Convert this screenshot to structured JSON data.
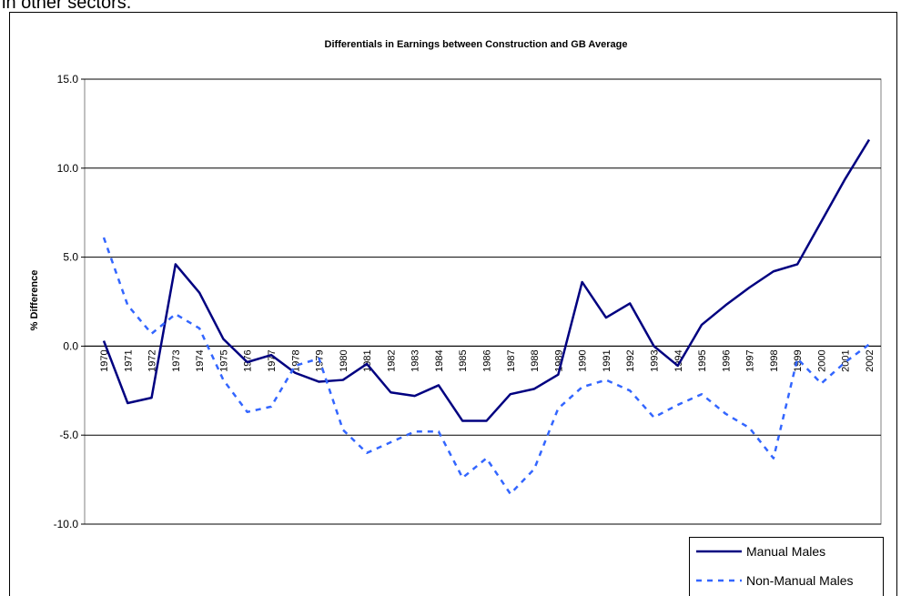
{
  "page_text": "in other sectors.",
  "chart_data": {
    "type": "line",
    "title": "Differentials in Earnings between Construction and GB Average",
    "ylabel": "% Difference",
    "categories": [
      "1970",
      "1971",
      "1972",
      "1973",
      "1974",
      "1975",
      "1976",
      "1977",
      "1978",
      "1979",
      "1980",
      "1981",
      "1982",
      "1983",
      "1984",
      "1985",
      "1986",
      "1987",
      "1988",
      "1989",
      "1990",
      "1991",
      "1992",
      "1993",
      "1994",
      "1995",
      "1996",
      "1997",
      "1998",
      "1999",
      "2000",
      "2001",
      "2002"
    ],
    "series": [
      {
        "name": "Manual Males",
        "color": "#000080",
        "dash": false,
        "values": [
          0.3,
          -3.2,
          -2.9,
          4.6,
          3.0,
          0.4,
          -0.9,
          -0.5,
          -1.5,
          -2.0,
          -1.9,
          -1.0,
          -2.6,
          -2.8,
          -2.2,
          -4.2,
          -4.2,
          -2.7,
          -2.4,
          -1.6,
          3.6,
          1.6,
          2.4,
          0.0,
          -1.1,
          1.2,
          2.3,
          3.3,
          4.2,
          4.6,
          7.0,
          9.4,
          11.6
        ]
      },
      {
        "name": "Non-Manual Males",
        "color": "#3366ff",
        "dash": true,
        "values": [
          6.1,
          2.3,
          0.7,
          1.8,
          1.0,
          -1.9,
          -3.7,
          -3.4,
          -1.1,
          -0.7,
          -4.7,
          -6.0,
          -5.4,
          -4.8,
          -4.8,
          -7.4,
          -6.3,
          -8.3,
          -6.9,
          -3.5,
          -2.3,
          -1.9,
          -2.5,
          -4.0,
          -3.3,
          -2.7,
          -3.8,
          -4.6,
          -6.3,
          -0.7,
          -2.1,
          -0.9,
          0.1
        ]
      }
    ],
    "ylim": [
      -10,
      15
    ],
    "yticks": [
      {
        "value": -10,
        "label": "-10.0"
      },
      {
        "value": -5,
        "label": "-5.0"
      },
      {
        "value": 0,
        "label": "0.0"
      },
      {
        "value": 5,
        "label": "5.0"
      },
      {
        "value": 10,
        "label": "10.0"
      },
      {
        "value": 15,
        "label": "15.0"
      }
    ],
    "grid": true,
    "legend": "bottom-right"
  }
}
